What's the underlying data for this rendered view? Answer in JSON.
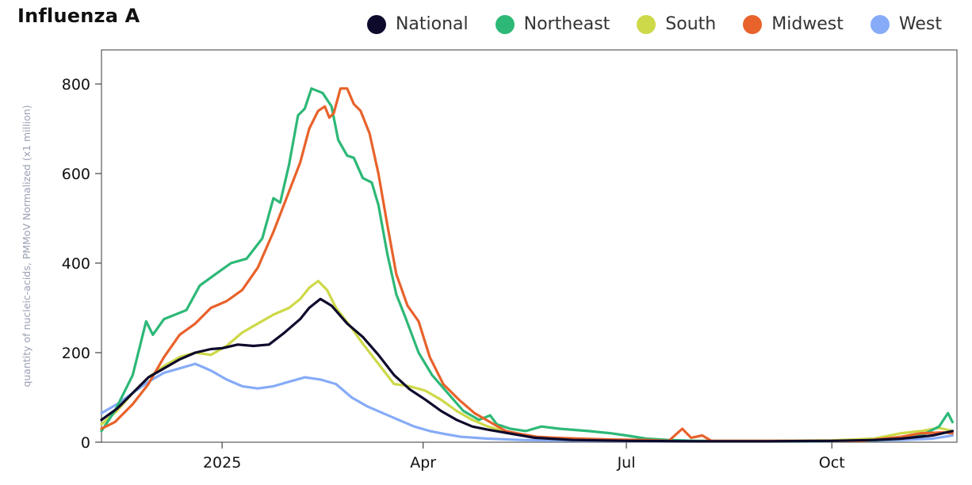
{
  "title": "Influenza A",
  "chart_data": {
    "type": "line",
    "title": "Influenza A",
    "xlabel": "",
    "ylabel": "quantity of nucleic-acids, PMMoV Normalized (x1 million)",
    "ylim": [
      0,
      850
    ],
    "xlim": [
      "2024-11-08",
      "2025-11-26"
    ],
    "yticks": [
      0,
      200,
      400,
      600,
      800
    ],
    "xticks": [
      {
        "label": "2025",
        "date": "2025-01-01"
      },
      {
        "label": "Apr",
        "date": "2025-04-01"
      },
      {
        "label": "Jul",
        "date": "2025-07-01"
      },
      {
        "label": "Oct",
        "date": "2025-10-01"
      }
    ],
    "grid": false,
    "legend_position": "top-right",
    "series": [
      {
        "name": "National",
        "color": "#0d0a2c",
        "points": [
          [
            "2024-11-08",
            50
          ],
          [
            "2024-11-15",
            75
          ],
          [
            "2024-11-22",
            110
          ],
          [
            "2024-11-29",
            145
          ],
          [
            "2024-12-06",
            165
          ],
          [
            "2024-12-13",
            185
          ],
          [
            "2024-12-20",
            200
          ],
          [
            "2024-12-27",
            208
          ],
          [
            "2025-01-01",
            210
          ],
          [
            "2025-01-08",
            218
          ],
          [
            "2025-01-15",
            215
          ],
          [
            "2025-01-22",
            218
          ],
          [
            "2025-01-29",
            245
          ],
          [
            "2025-02-05",
            275
          ],
          [
            "2025-02-09",
            300
          ],
          [
            "2025-02-14",
            320
          ],
          [
            "2025-02-19",
            305
          ],
          [
            "2025-02-26",
            265
          ],
          [
            "2025-03-05",
            235
          ],
          [
            "2025-03-12",
            195
          ],
          [
            "2025-03-19",
            150
          ],
          [
            "2025-03-26",
            118
          ],
          [
            "2025-04-02",
            95
          ],
          [
            "2025-04-09",
            70
          ],
          [
            "2025-04-16",
            50
          ],
          [
            "2025-04-23",
            35
          ],
          [
            "2025-04-30",
            28
          ],
          [
            "2025-05-07",
            22
          ],
          [
            "2025-05-21",
            10
          ],
          [
            "2025-06-07",
            5
          ],
          [
            "2025-07-01",
            3
          ],
          [
            "2025-08-01",
            2
          ],
          [
            "2025-09-01",
            2
          ],
          [
            "2025-10-01",
            3
          ],
          [
            "2025-10-20",
            5
          ],
          [
            "2025-11-01",
            8
          ],
          [
            "2025-11-15",
            15
          ],
          [
            "2025-11-24",
            25
          ]
        ]
      },
      {
        "name": "Northeast",
        "color": "#2db877",
        "points": [
          [
            "2024-11-08",
            25
          ],
          [
            "2024-11-14",
            70
          ],
          [
            "2024-11-22",
            150
          ],
          [
            "2024-11-28",
            270
          ],
          [
            "2024-12-01",
            240
          ],
          [
            "2024-12-06",
            275
          ],
          [
            "2024-12-16",
            295
          ],
          [
            "2024-12-22",
            350
          ],
          [
            "2024-12-29",
            375
          ],
          [
            "2025-01-05",
            400
          ],
          [
            "2025-01-12",
            410
          ],
          [
            "2025-01-19",
            455
          ],
          [
            "2025-01-24",
            545
          ],
          [
            "2025-01-27",
            535
          ],
          [
            "2025-01-31",
            620
          ],
          [
            "2025-02-04",
            730
          ],
          [
            "2025-02-07",
            745
          ],
          [
            "2025-02-10",
            790
          ],
          [
            "2025-02-15",
            780
          ],
          [
            "2025-02-19",
            750
          ],
          [
            "2025-02-22",
            675
          ],
          [
            "2025-02-26",
            640
          ],
          [
            "2025-03-01",
            635
          ],
          [
            "2025-03-05",
            590
          ],
          [
            "2025-03-09",
            580
          ],
          [
            "2025-03-12",
            530
          ],
          [
            "2025-03-16",
            420
          ],
          [
            "2025-03-20",
            330
          ],
          [
            "2025-03-24",
            280
          ],
          [
            "2025-03-30",
            200
          ],
          [
            "2025-04-05",
            150
          ],
          [
            "2025-04-12",
            110
          ],
          [
            "2025-04-19",
            70
          ],
          [
            "2025-04-26",
            50
          ],
          [
            "2025-05-01",
            60
          ],
          [
            "2025-05-04",
            40
          ],
          [
            "2025-05-10",
            30
          ],
          [
            "2025-05-17",
            25
          ],
          [
            "2025-05-24",
            35
          ],
          [
            "2025-06-01",
            30
          ],
          [
            "2025-06-14",
            25
          ],
          [
            "2025-06-24",
            20
          ],
          [
            "2025-07-01",
            15
          ],
          [
            "2025-07-10",
            8
          ],
          [
            "2025-07-20",
            5
          ],
          [
            "2025-08-01",
            3
          ],
          [
            "2025-08-20",
            2
          ],
          [
            "2025-09-15",
            2
          ],
          [
            "2025-10-15",
            3
          ],
          [
            "2025-11-01",
            8
          ],
          [
            "2025-11-10",
            15
          ],
          [
            "2025-11-18",
            35
          ],
          [
            "2025-11-22",
            65
          ],
          [
            "2025-11-24",
            45
          ]
        ]
      },
      {
        "name": "South",
        "color": "#cdd948",
        "points": [
          [
            "2024-11-08",
            40
          ],
          [
            "2024-11-15",
            70
          ],
          [
            "2024-11-22",
            110
          ],
          [
            "2024-11-29",
            145
          ],
          [
            "2024-12-06",
            170
          ],
          [
            "2024-12-13",
            190
          ],
          [
            "2024-12-20",
            200
          ],
          [
            "2024-12-27",
            195
          ],
          [
            "2025-01-03",
            215
          ],
          [
            "2025-01-10",
            245
          ],
          [
            "2025-01-17",
            265
          ],
          [
            "2025-01-24",
            285
          ],
          [
            "2025-01-31",
            300
          ],
          [
            "2025-02-05",
            320
          ],
          [
            "2025-02-09",
            345
          ],
          [
            "2025-02-13",
            360
          ],
          [
            "2025-02-17",
            340
          ],
          [
            "2025-02-21",
            300
          ],
          [
            "2025-02-28",
            255
          ],
          [
            "2025-03-05",
            220
          ],
          [
            "2025-03-12",
            175
          ],
          [
            "2025-03-19",
            130
          ],
          [
            "2025-03-26",
            125
          ],
          [
            "2025-04-02",
            115
          ],
          [
            "2025-04-09",
            95
          ],
          [
            "2025-04-16",
            70
          ],
          [
            "2025-04-23",
            50
          ],
          [
            "2025-04-30",
            35
          ],
          [
            "2025-05-07",
            25
          ],
          [
            "2025-05-21",
            12
          ],
          [
            "2025-06-10",
            6
          ],
          [
            "2025-07-01",
            4
          ],
          [
            "2025-08-01",
            3
          ],
          [
            "2025-09-01",
            3
          ],
          [
            "2025-10-01",
            4
          ],
          [
            "2025-10-20",
            8
          ],
          [
            "2025-11-01",
            20
          ],
          [
            "2025-11-10",
            25
          ],
          [
            "2025-11-18",
            32
          ],
          [
            "2025-11-24",
            25
          ]
        ]
      },
      {
        "name": "Midwest",
        "color": "#e8622b",
        "points": [
          [
            "2024-11-08",
            30
          ],
          [
            "2024-11-14",
            45
          ],
          [
            "2024-11-22",
            85
          ],
          [
            "2024-11-29",
            130
          ],
          [
            "2024-12-06",
            190
          ],
          [
            "2024-12-13",
            240
          ],
          [
            "2024-12-20",
            265
          ],
          [
            "2024-12-27",
            300
          ],
          [
            "2025-01-03",
            315
          ],
          [
            "2025-01-10",
            340
          ],
          [
            "2025-01-17",
            390
          ],
          [
            "2025-01-24",
            470
          ],
          [
            "2025-01-31",
            560
          ],
          [
            "2025-02-05",
            625
          ],
          [
            "2025-02-09",
            700
          ],
          [
            "2025-02-13",
            740
          ],
          [
            "2025-02-16",
            750
          ],
          [
            "2025-02-18",
            725
          ],
          [
            "2025-02-20",
            735
          ],
          [
            "2025-02-23",
            790
          ],
          [
            "2025-02-26",
            790
          ],
          [
            "2025-03-01",
            755
          ],
          [
            "2025-03-04",
            740
          ],
          [
            "2025-03-08",
            690
          ],
          [
            "2025-03-12",
            600
          ],
          [
            "2025-03-16",
            485
          ],
          [
            "2025-03-20",
            375
          ],
          [
            "2025-03-25",
            305
          ],
          [
            "2025-03-30",
            270
          ],
          [
            "2025-04-04",
            190
          ],
          [
            "2025-04-10",
            130
          ],
          [
            "2025-04-17",
            95
          ],
          [
            "2025-04-24",
            65
          ],
          [
            "2025-05-01",
            45
          ],
          [
            "2025-05-08",
            25
          ],
          [
            "2025-05-15",
            18
          ],
          [
            "2025-05-22",
            12
          ],
          [
            "2025-05-30",
            10
          ],
          [
            "2025-06-10",
            8
          ],
          [
            "2025-06-24",
            6
          ],
          [
            "2025-07-10",
            5
          ],
          [
            "2025-07-20",
            3
          ],
          [
            "2025-07-26",
            30
          ],
          [
            "2025-07-30",
            10
          ],
          [
            "2025-08-04",
            15
          ],
          [
            "2025-08-08",
            3
          ],
          [
            "2025-08-20",
            3
          ],
          [
            "2025-09-15",
            3
          ],
          [
            "2025-10-15",
            3
          ],
          [
            "2025-11-01",
            12
          ],
          [
            "2025-11-10",
            20
          ],
          [
            "2025-11-20",
            22
          ],
          [
            "2025-11-24",
            20
          ]
        ]
      },
      {
        "name": "West",
        "color": "#86abf7",
        "points": [
          [
            "2024-11-08",
            65
          ],
          [
            "2024-11-15",
            85
          ],
          [
            "2024-11-22",
            110
          ],
          [
            "2024-11-29",
            135
          ],
          [
            "2024-12-06",
            155
          ],
          [
            "2024-12-13",
            165
          ],
          [
            "2024-12-20",
            175
          ],
          [
            "2024-12-27",
            160
          ],
          [
            "2025-01-03",
            140
          ],
          [
            "2025-01-10",
            125
          ],
          [
            "2025-01-17",
            120
          ],
          [
            "2025-01-24",
            125
          ],
          [
            "2025-01-31",
            135
          ],
          [
            "2025-02-07",
            145
          ],
          [
            "2025-02-14",
            140
          ],
          [
            "2025-02-21",
            130
          ],
          [
            "2025-02-28",
            100
          ],
          [
            "2025-03-07",
            80
          ],
          [
            "2025-03-14",
            65
          ],
          [
            "2025-03-21",
            50
          ],
          [
            "2025-03-28",
            35
          ],
          [
            "2025-04-04",
            25
          ],
          [
            "2025-04-11",
            18
          ],
          [
            "2025-04-18",
            12
          ],
          [
            "2025-04-30",
            8
          ],
          [
            "2025-05-15",
            5
          ],
          [
            "2025-06-15",
            3
          ],
          [
            "2025-07-15",
            2
          ],
          [
            "2025-08-15",
            3
          ],
          [
            "2025-09-15",
            2
          ],
          [
            "2025-10-15",
            3
          ],
          [
            "2025-11-01",
            5
          ],
          [
            "2025-11-15",
            8
          ],
          [
            "2025-11-24",
            15
          ]
        ]
      }
    ]
  }
}
